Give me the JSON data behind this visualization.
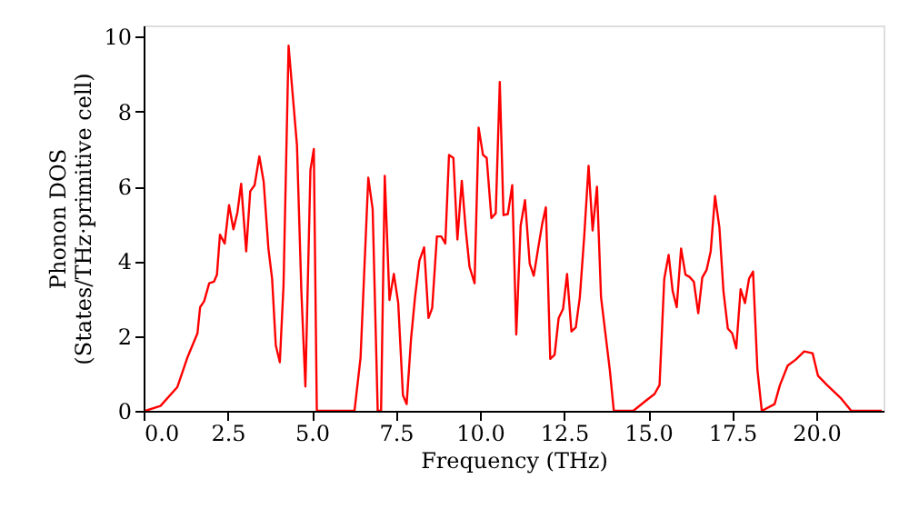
{
  "chart_data": {
    "type": "line",
    "xlabel": "Frequency (THz)",
    "ylabel": "Phonon DOS\n(States/THz·primitive cell)",
    "xlim": [
      0,
      22
    ],
    "ylim": [
      0,
      10.3
    ],
    "xticks": [
      {
        "value": 0,
        "label": "0.0"
      },
      {
        "value": 2.5,
        "label": "2.5"
      },
      {
        "value": 5,
        "label": "5.0"
      },
      {
        "value": 7.5,
        "label": "7.5"
      },
      {
        "value": 10,
        "label": "10.0"
      },
      {
        "value": 12.5,
        "label": "12.5"
      },
      {
        "value": 15,
        "label": "15.0"
      },
      {
        "value": 17.5,
        "label": "17.5"
      },
      {
        "value": 20,
        "label": "20.0"
      }
    ],
    "yticks": [
      0,
      2,
      4,
      6,
      8,
      10
    ],
    "grid": false,
    "marker": "none",
    "line_style": "solid",
    "series": [
      {
        "color": "#ff0000",
        "x": [
          0.05,
          0.5,
          1.0,
          1.3,
          1.6,
          1.68,
          1.8,
          1.95,
          2.09,
          2.18,
          2.27,
          2.41,
          2.54,
          2.67,
          2.79,
          2.9,
          3.05,
          3.17,
          3.3,
          3.44,
          3.57,
          3.71,
          3.82,
          3.93,
          4.05,
          4.16,
          4.31,
          4.56,
          4.69,
          4.81,
          4.96,
          5.06,
          5.15,
          6.27,
          6.45,
          6.68,
          6.81,
          6.96,
          7.06,
          7.17,
          7.31,
          7.44,
          7.57,
          7.71,
          7.82,
          7.95,
          8.07,
          8.2,
          8.34,
          8.47,
          8.58,
          8.72,
          8.85,
          8.97,
          9.08,
          9.21,
          9.33,
          9.46,
          9.58,
          9.69,
          9.84,
          9.96,
          10.09,
          10.2,
          10.34,
          10.47,
          10.59,
          10.7,
          10.83,
          10.96,
          11.08,
          11.21,
          11.34,
          11.48,
          11.6,
          11.73,
          11.85,
          11.96,
          12.09,
          12.22,
          12.34,
          12.47,
          12.59,
          12.72,
          12.85,
          12.97,
          13.1,
          13.23,
          13.35,
          13.48,
          13.6,
          13.73,
          13.86,
          13.98,
          14.56,
          14.92,
          15.19,
          15.34,
          15.48,
          15.61,
          15.73,
          15.85,
          15.98,
          16.11,
          16.23,
          16.36,
          16.49,
          16.61,
          16.74,
          16.86,
          16.99,
          17.12,
          17.24,
          17.37,
          17.5,
          17.62,
          17.75,
          17.88,
          18.0,
          18.12,
          18.25,
          18.38,
          18.76,
          18.92,
          19.15,
          19.39,
          19.64,
          19.89,
          20.05,
          20.32,
          20.74,
          21.04,
          21.95
        ],
        "values": [
          0,
          0.13,
          0.63,
          1.42,
          2.07,
          2.77,
          2.93,
          3.41,
          3.45,
          3.64,
          4.71,
          4.47,
          5.5,
          4.85,
          5.31,
          6.07,
          4.26,
          5.87,
          6.03,
          6.8,
          6.12,
          4.34,
          3.53,
          1.75,
          1.3,
          3.36,
          9.76,
          7.09,
          3.2,
          0.65,
          6.44,
          7.0,
          0,
          0,
          1.42,
          6.23,
          5.39,
          0,
          0,
          6.28,
          2.96,
          3.66,
          2.88,
          0.42,
          0.18,
          1.91,
          3.04,
          4.01,
          4.37,
          2.48,
          2.75,
          4.66,
          4.66,
          4.47,
          6.84,
          6.76,
          4.58,
          6.15,
          4.82,
          3.85,
          3.41,
          7.57,
          6.84,
          6.76,
          5.15,
          5.28,
          8.79,
          5.23,
          5.26,
          6.03,
          2.04,
          4.95,
          5.63,
          3.93,
          3.61,
          4.34,
          4.99,
          5.44,
          1.39,
          1.5,
          2.48,
          2.72,
          3.66,
          2.12,
          2.23,
          3.04,
          4.66,
          6.55,
          4.82,
          5.99,
          3.04,
          2.07,
          1.1,
          0,
          0,
          0.26,
          0.45,
          0.69,
          3.53,
          4.17,
          3.2,
          2.77,
          4.34,
          3.64,
          3.58,
          3.45,
          2.61,
          3.56,
          3.77,
          4.26,
          5.74,
          4.9,
          3.2,
          2.2,
          2.07,
          1.67,
          3.25,
          2.88,
          3.53,
          3.72,
          1.1,
          0,
          0.18,
          0.69,
          1.21,
          1.37,
          1.59,
          1.54,
          0.94,
          0.69,
          0.33,
          0,
          0
        ]
      }
    ]
  }
}
